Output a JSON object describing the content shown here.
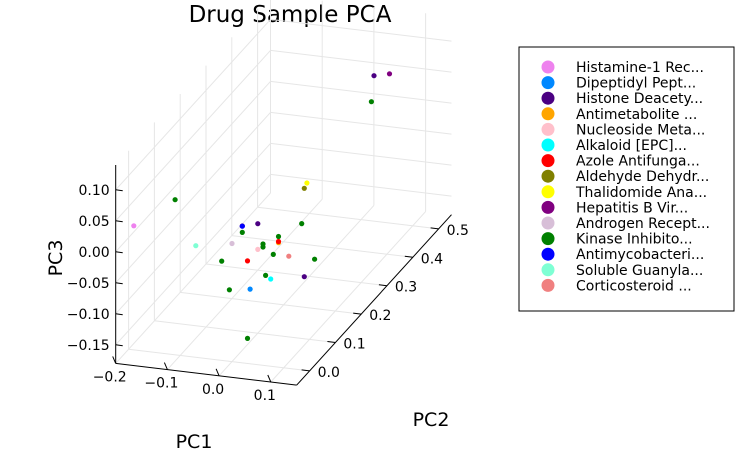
{
  "chart_data": {
    "type": "scatter",
    "dimensions": 3,
    "title": "Drug Sample PCA",
    "xlabel": "PC1",
    "ylabel": "PC2",
    "zlabel": "PC3",
    "xlim": [
      -0.2,
      0.15
    ],
    "ylim": [
      -0.05,
      0.55
    ],
    "zlim": [
      -0.18,
      0.14
    ],
    "xticks": [
      "−0.2",
      "−0.1",
      "0.0",
      "0.1"
    ],
    "yticks": [
      "0.0",
      "0.1",
      "0.2",
      "0.3",
      "0.4",
      "0.5"
    ],
    "zticks": [
      "0.10",
      "0.05",
      "0.00",
      "−0.05",
      "−0.10",
      "−0.15"
    ],
    "grid": true,
    "legend_position": "outer right",
    "series": [
      {
        "name": "Histamine-1 Rec...",
        "color": "#ee82ee",
        "points": [
          [
            -0.19,
            0.0,
            0.02
          ]
        ]
      },
      {
        "name": "Dipeptidyl Pept...",
        "color": "#0088ff",
        "points": [
          [
            0.01,
            0.05,
            -0.085
          ]
        ]
      },
      {
        "name": "Histone Deacety...",
        "color": "#4b0082",
        "points": [
          [
            -0.02,
            0.08,
            0.0
          ],
          [
            0.02,
            0.06,
            0.017
          ],
          [
            0.05,
            0.45,
            0.08
          ],
          [
            0.08,
            0.12,
            -0.09
          ]
        ]
      },
      {
        "name": "Antimetabolite ...",
        "color": "#ffa500",
        "points": [
          [
            0.04,
            0.1,
            -0.03
          ]
        ]
      },
      {
        "name": "Nucleoside Meta...",
        "color": "#ffc0cb",
        "points": [
          [
            -0.01,
            0.12,
            -0.055
          ]
        ]
      },
      {
        "name": "Alkaloid [EPC]...",
        "color": "#00ffff",
        "points": [
          [
            0.03,
            0.09,
            -0.085
          ]
        ]
      },
      {
        "name": "Azole Antifunga...",
        "color": "#ff0000",
        "points": [
          [
            0.0,
            0.06,
            -0.045
          ],
          [
            0.05,
            0.08,
            -0.018
          ]
        ]
      },
      {
        "name": "Aldehyde Dehydr...",
        "color": "#808000",
        "points": [
          [
            0.05,
            0.18,
            0.022
          ]
        ]
      },
      {
        "name": "Thalidomide Ana...",
        "color": "#ffff00",
        "points": [
          [
            0.05,
            0.19,
            0.026
          ]
        ]
      },
      {
        "name": "Hepatitis B Vir...",
        "color": "#800080",
        "points": [
          [
            0.08,
            0.45,
            0.086
          ]
        ]
      },
      {
        "name": "Androgen Recept...",
        "color": "#d8bfd8",
        "points": [
          [
            -0.03,
            0.06,
            -0.02
          ]
        ]
      },
      {
        "name": "Kinase Inhibito...",
        "color": "#008000",
        "points": [
          [
            -0.12,
            0.02,
            0.06
          ],
          [
            -0.03,
            0.02,
            -0.03
          ],
          [
            0.0,
            0.04,
            0.01
          ],
          [
            0.01,
            0.1,
            -0.04
          ],
          [
            0.02,
            0.12,
            -0.06
          ],
          [
            0.03,
            0.07,
            -0.07
          ],
          [
            0.04,
            0.1,
            -0.02
          ],
          [
            0.07,
            0.13,
            -0.01
          ],
          [
            0.09,
            0.14,
            -0.07
          ],
          [
            -0.02,
            0.03,
            -0.08
          ],
          [
            0.0,
            0.06,
            -0.17
          ],
          [
            0.02,
            0.08,
            -0.025
          ],
          [
            0.07,
            0.4,
            0.063
          ]
        ]
      },
      {
        "name": "Antimycobacteri...",
        "color": "#0000ff",
        "points": [
          [
            0.0,
            0.04,
            0.02
          ]
        ]
      },
      {
        "name": "Soluble Guanyla...",
        "color": "#7fffd4",
        "points": [
          [
            -0.07,
            0.0,
            0.0
          ]
        ]
      },
      {
        "name": "Corticosteroid ...",
        "color": "#f08080",
        "points": [
          [
            0.05,
            0.12,
            -0.06
          ]
        ]
      }
    ]
  }
}
